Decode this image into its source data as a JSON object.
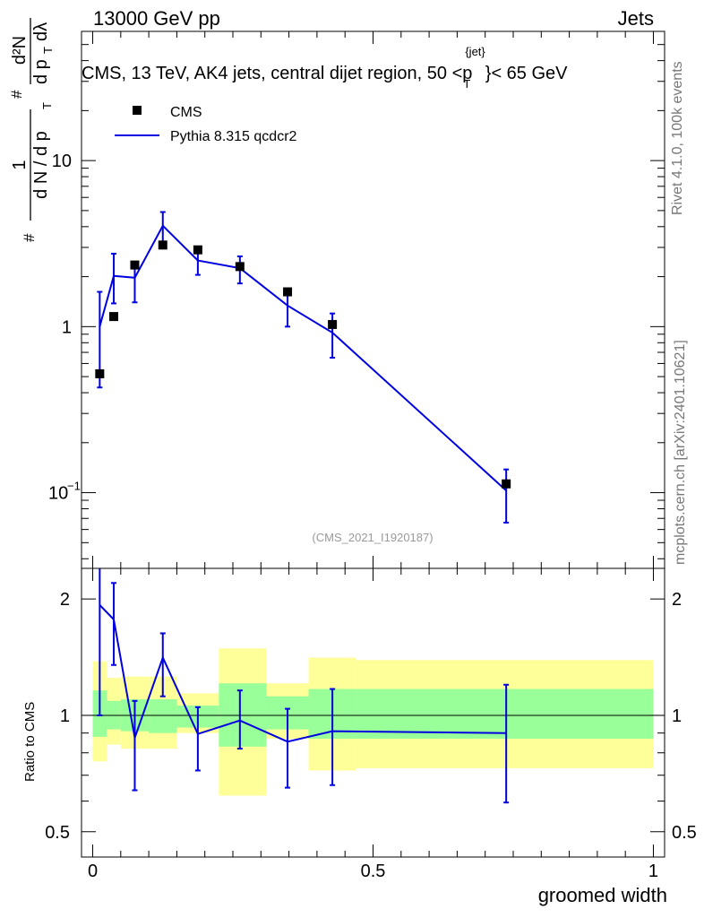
{
  "header": {
    "left": "13000 GeV pp",
    "right": "Jets"
  },
  "side_labels": {
    "rivet": "Rivet 4.1.0,  100k events",
    "mcplots": "mcplots.cern.ch [arXiv:2401.10621]"
  },
  "chart_data": [
    {
      "type": "scatter",
      "title_parts": {
        "main": "CMS, 13 TeV, AK4 jets, central dijet region, 50 <p",
        "sub": "T",
        "sup": "{jet}",
        "tail": "}< 65 GeV"
      },
      "ylabel": "#frac{1}{dN / dp_T} #frac{d^2N}{dp_T dλ}",
      "yscale": "log",
      "ylim": [
        0.035,
        60
      ],
      "xlim": [
        -0.02,
        1.02
      ],
      "yticks": [
        {
          "value": 0.1,
          "base": "10",
          "exp": "−1"
        },
        {
          "value": 1,
          "label": "1"
        },
        {
          "value": 10,
          "label": "10"
        }
      ],
      "watermark": "(CMS_2021_I1920187)",
      "legend": {
        "placement": "top-left",
        "data_label": "CMS",
        "mc_label": "Pythia 8.315 qcdcr2"
      },
      "data": {
        "name": "CMS",
        "x": [
          0.0125,
          0.0375,
          0.075,
          0.125,
          0.1875,
          0.2625,
          0.3475,
          0.4275,
          0.7375
        ],
        "y": [
          0.52,
          1.15,
          2.35,
          3.1,
          2.9,
          2.3,
          1.62,
          1.03,
          0.113
        ]
      },
      "mc": {
        "name": "Pythia 8.315 qcdcr2",
        "x": [
          0.0125,
          0.0375,
          0.075,
          0.125,
          0.1875,
          0.2625,
          0.3475,
          0.4275,
          0.7375
        ],
        "y": [
          1.0,
          2.02,
          1.97,
          4.05,
          2.5,
          2.25,
          1.34,
          0.92,
          0.103
        ],
        "err_low": [
          0.43,
          1.38,
          1.4,
          3.25,
          2.05,
          1.82,
          1.0,
          0.65,
          0.066
        ],
        "err_high": [
          1.62,
          2.75,
          2.3,
          4.9,
          2.95,
          2.65,
          1.68,
          1.2,
          0.138
        ]
      }
    },
    {
      "type": "line",
      "ylabel": "Ratio to CMS",
      "xlabel": "groomed width",
      "yscale": "log",
      "ylim": [
        0.43,
        2.4
      ],
      "xlim": [
        -0.02,
        1.02
      ],
      "yticks": [
        {
          "value": 0.5,
          "label": "0.5"
        },
        {
          "value": 1,
          "label": "1"
        },
        {
          "value": 2,
          "label": "2"
        }
      ],
      "xticks": [
        {
          "value": 0,
          "label": "0"
        },
        {
          "value": 0.5,
          "label": "0.5"
        },
        {
          "value": 1,
          "label": "1"
        }
      ],
      "bands": [
        {
          "x0": 0.0,
          "x1": 0.025,
          "g_lo": 0.88,
          "g_hi": 1.16,
          "y_lo": 0.76,
          "y_hi": 1.38
        },
        {
          "x0": 0.025,
          "x1": 0.05,
          "g_lo": 0.92,
          "g_hi": 1.09,
          "y_lo": 0.84,
          "y_hi": 1.25
        },
        {
          "x0": 0.05,
          "x1": 0.1,
          "g_lo": 0.91,
          "g_hi": 1.1,
          "y_lo": 0.82,
          "y_hi": 1.26
        },
        {
          "x0": 0.1,
          "x1": 0.15,
          "g_lo": 0.9,
          "g_hi": 1.1,
          "y_lo": 0.82,
          "y_hi": 1.26
        },
        {
          "x0": 0.15,
          "x1": 0.225,
          "g_lo": 0.93,
          "g_hi": 1.06,
          "y_lo": 0.9,
          "y_hi": 1.14
        },
        {
          "x0": 0.225,
          "x1": 0.31,
          "g_lo": 0.83,
          "g_hi": 1.21,
          "y_lo": 0.62,
          "y_hi": 1.49
        },
        {
          "x0": 0.31,
          "x1": 0.385,
          "g_lo": 0.92,
          "g_hi": 1.12,
          "y_lo": 0.87,
          "y_hi": 1.21
        },
        {
          "x0": 0.385,
          "x1": 0.47,
          "g_lo": 0.87,
          "g_hi": 1.17,
          "y_lo": 0.72,
          "y_hi": 1.41
        },
        {
          "x0": 0.47,
          "x1": 1.0,
          "g_lo": 0.87,
          "g_hi": 1.17,
          "y_lo": 0.73,
          "y_hi": 1.39
        }
      ],
      "ratio": {
        "x": [
          0.0125,
          0.0375,
          0.075,
          0.125,
          0.1875,
          0.2625,
          0.3475,
          0.4275,
          0.7375
        ],
        "y": [
          1.93,
          1.77,
          0.875,
          1.41,
          0.895,
          0.97,
          0.855,
          0.91,
          0.9
        ],
        "err_low": [
          1.0,
          1.35,
          0.64,
          1.12,
          0.72,
          0.82,
          0.65,
          0.66,
          0.595
        ],
        "err_high": [
          2.4,
          2.2,
          1.09,
          1.63,
          1.05,
          1.16,
          1.04,
          1.17,
          1.2
        ]
      }
    }
  ]
}
